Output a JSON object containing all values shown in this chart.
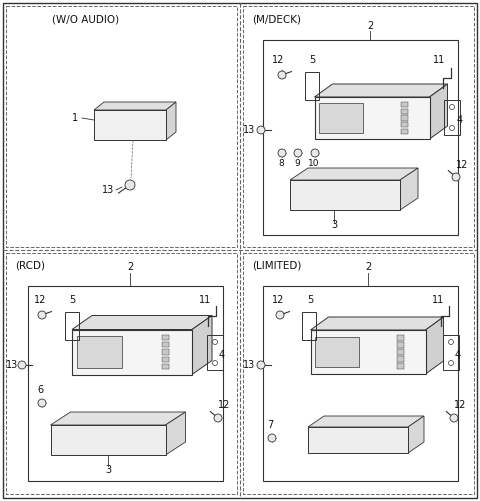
{
  "bg_color": "#ffffff",
  "line_color": "#333333",
  "dash_color": "#666666",
  "text_color": "#111111",
  "panel_labels": [
    "(W/O AUDIO)",
    "(M/DECK)",
    "(RCD)",
    "(LIMITED)"
  ],
  "fig_w": 4.8,
  "fig_h": 5.01,
  "dpi": 100
}
